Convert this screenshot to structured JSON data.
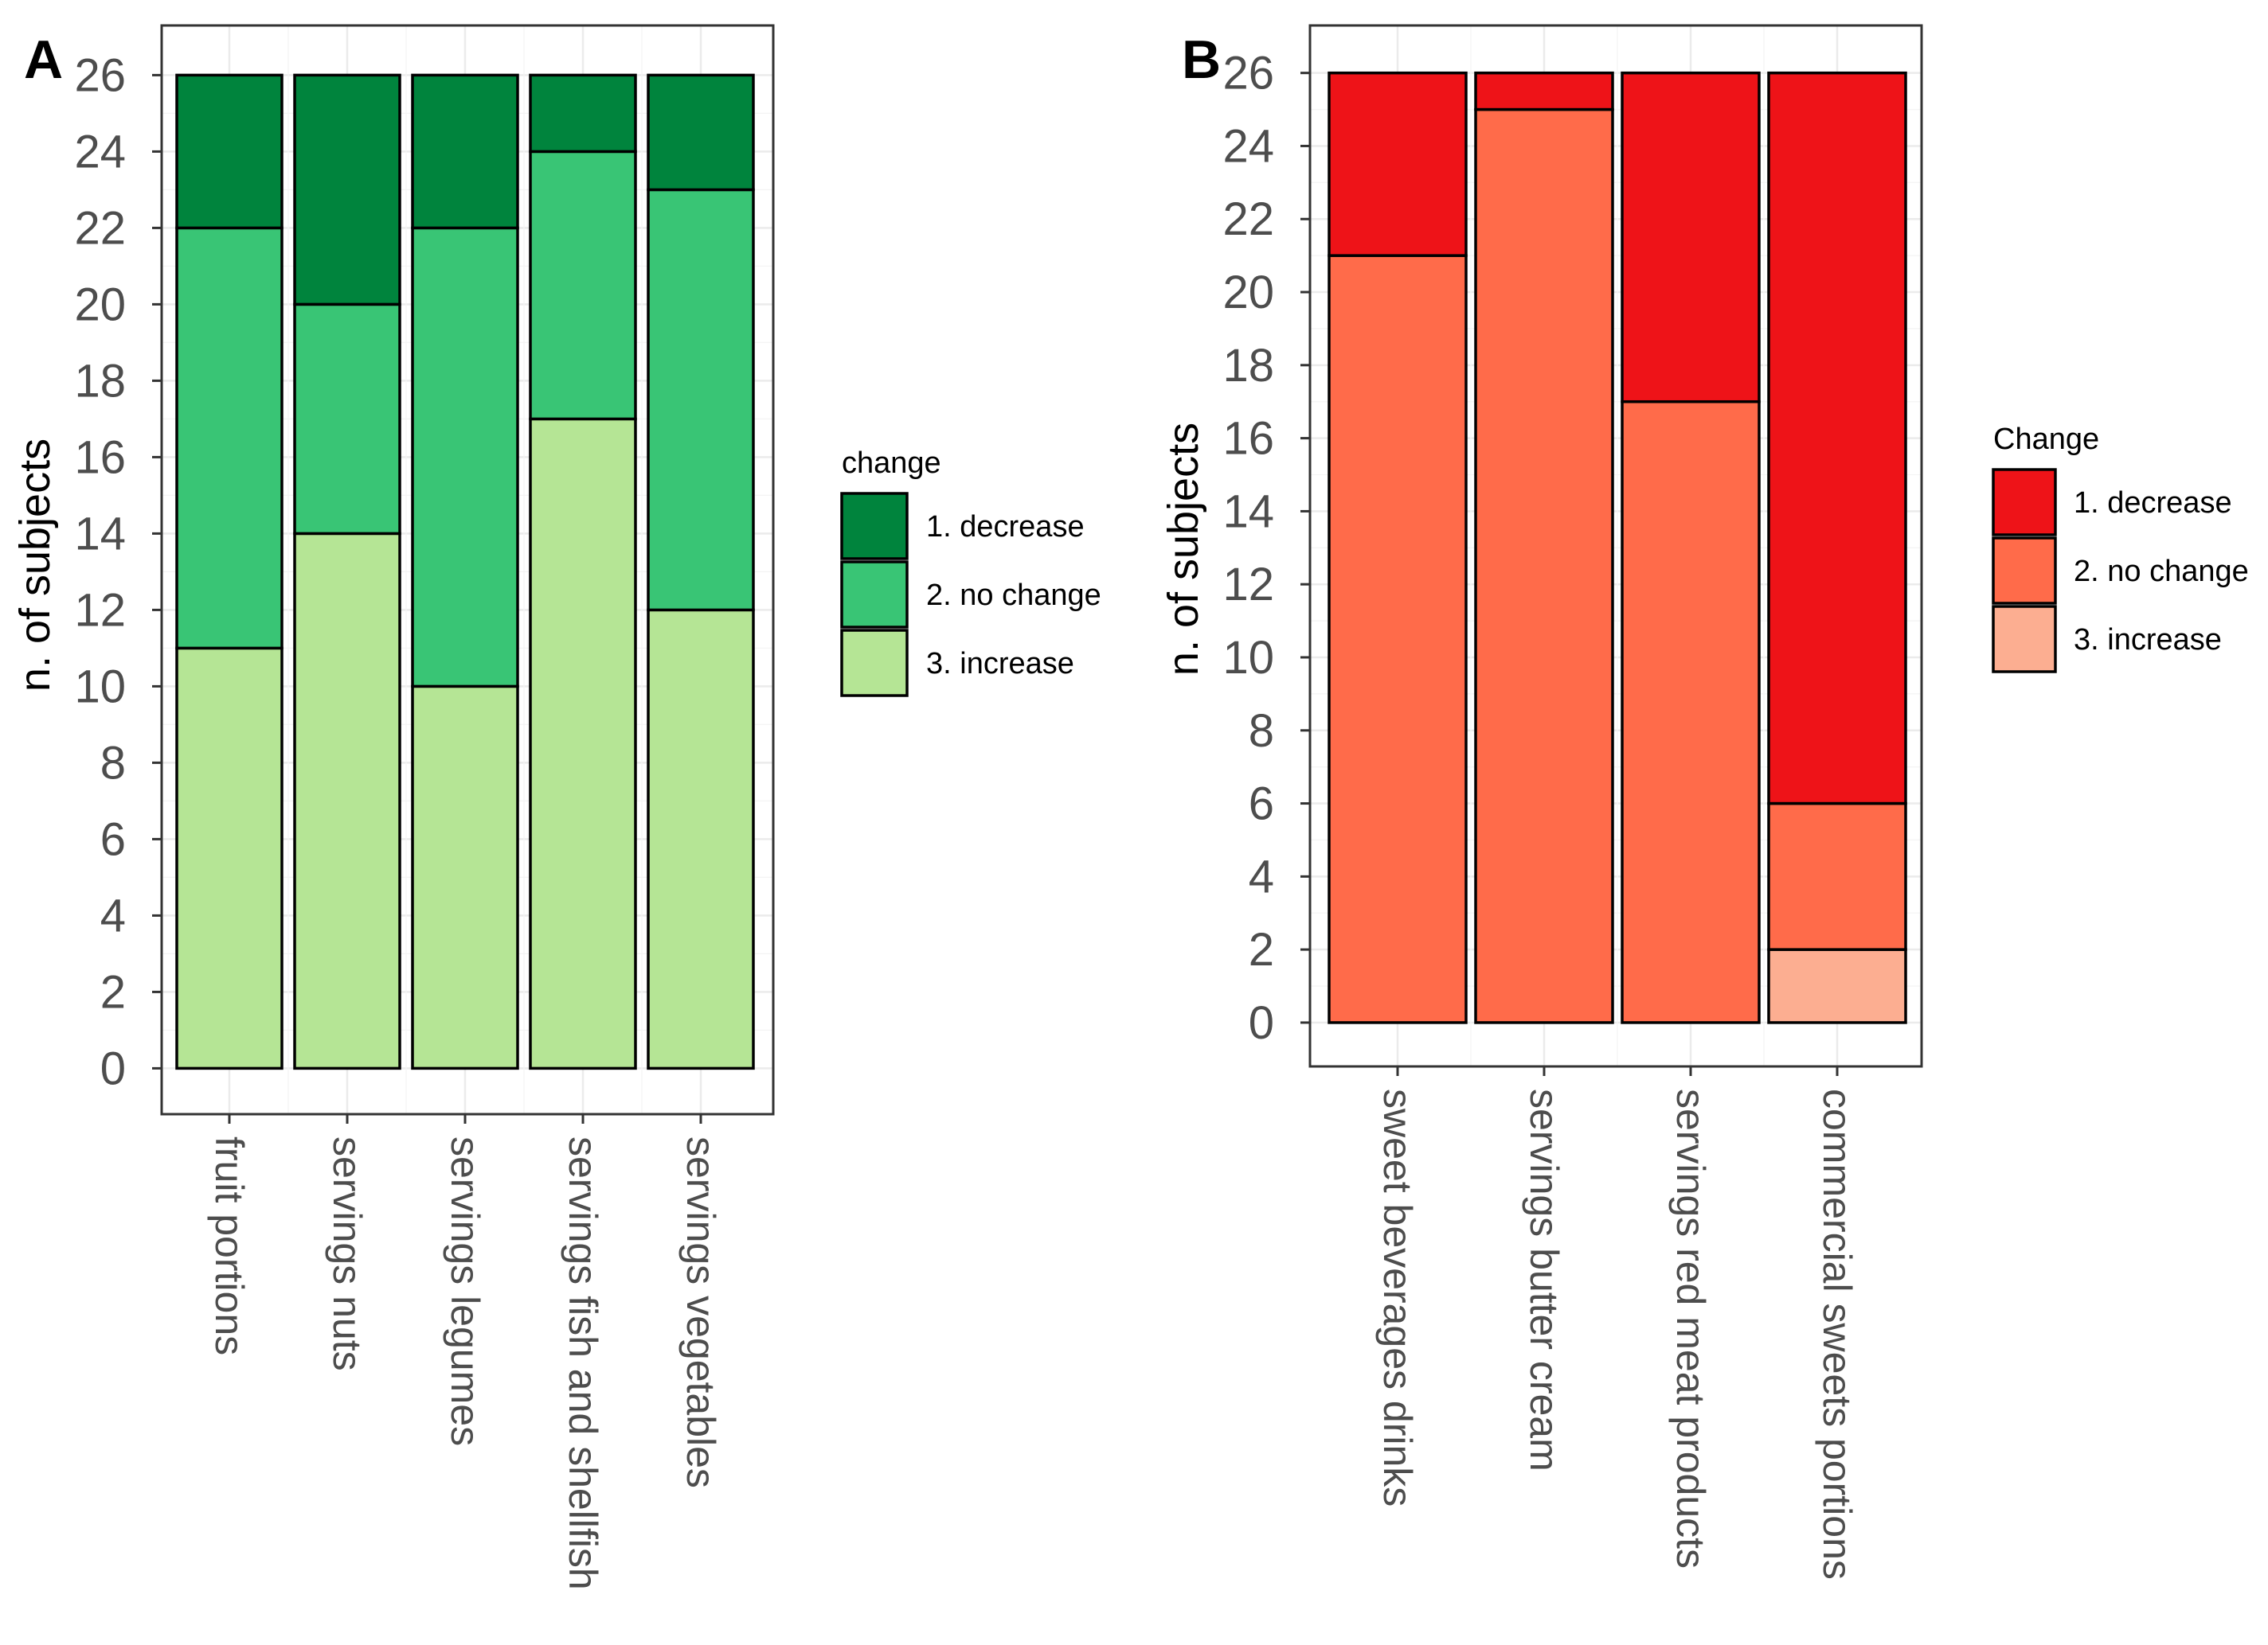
{
  "chart_data": [
    {
      "panel": "A",
      "type": "bar",
      "stacked": true,
      "ylabel": "n. of subjects",
      "xlabel": "",
      "ylim": [
        -1.2,
        27.3
      ],
      "yticks": [
        "0",
        "2",
        "4",
        "6",
        "8",
        "10",
        "12",
        "14",
        "16",
        "18",
        "20",
        "22",
        "24",
        "26"
      ],
      "grid": true,
      "legend": {
        "title": "change",
        "position": "right",
        "entries": [
          "1. decrease",
          "2. no change",
          "3. increase"
        ]
      },
      "categories": [
        "fruit portions",
        "servings nuts",
        "servings legumes",
        "servings fish and shellfish",
        "servings vegetables"
      ],
      "series": [
        {
          "name": "3. increase",
          "color": "#b5e595",
          "values": [
            11,
            14,
            10,
            17,
            12
          ]
        },
        {
          "name": "2. no change",
          "color": "#39c575",
          "values": [
            11,
            6,
            12,
            7,
            11
          ]
        },
        {
          "name": "1. decrease",
          "color": "#00843d",
          "values": [
            4,
            6,
            4,
            2,
            3
          ]
        }
      ]
    },
    {
      "panel": "B",
      "type": "bar",
      "stacked": true,
      "ylabel": "n. of subjects",
      "xlabel": "",
      "ylim": [
        -1.2,
        27.3
      ],
      "yticks": [
        "0",
        "2",
        "4",
        "6",
        "8",
        "10",
        "12",
        "14",
        "16",
        "18",
        "20",
        "22",
        "24",
        "26"
      ],
      "grid": true,
      "legend": {
        "title": "Change",
        "position": "right",
        "entries": [
          "1. decrease",
          "2. no change",
          "3. increase"
        ]
      },
      "categories": [
        "sweet beverages drinks",
        "servings butter cream",
        "servings red meat products",
        "commercial sweets portions"
      ],
      "series": [
        {
          "name": "3. increase",
          "color": "#fcae91",
          "values": [
            0,
            0,
            0,
            2
          ]
        },
        {
          "name": "2. no change",
          "color": "#ff6b4a",
          "values": [
            21,
            25,
            17,
            4
          ]
        },
        {
          "name": "1. decrease",
          "color": "#ee1318",
          "values": [
            5,
            1,
            9,
            20
          ]
        }
      ]
    }
  ]
}
